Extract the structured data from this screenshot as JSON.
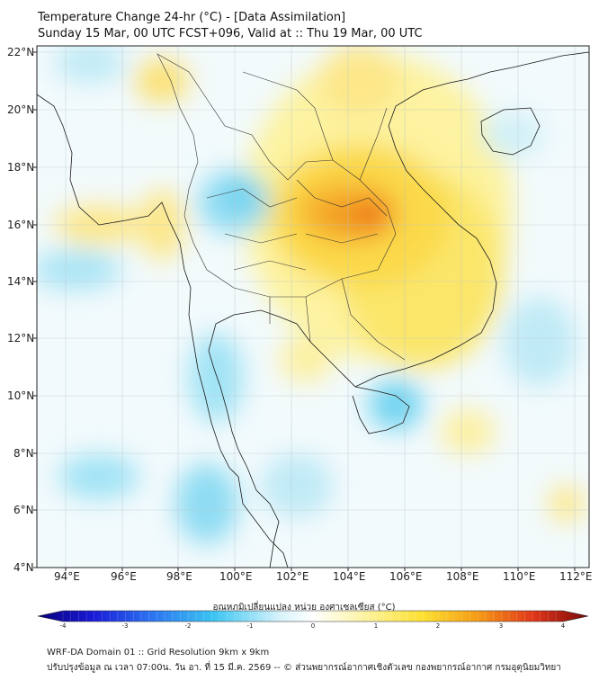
{
  "header": {
    "title_line1": "Temperature Change 24-hr (°C) - [Data Assimilation]",
    "title_line2": "Sunday 15 Mar, 00 UTC FCST+096, Valid at :: Thu 19 Mar, 00 UTC"
  },
  "map": {
    "lat_labels": [
      "22°N",
      "20°N",
      "18°N",
      "16°N",
      "14°N",
      "12°N",
      "10°N",
      "8°N",
      "6°N",
      "4°N"
    ],
    "lon_labels": [
      "94°E",
      "96°E",
      "98°E",
      "100°E",
      "102°E",
      "104°E",
      "106°E",
      "108°E",
      "110°E",
      "112°E"
    ]
  },
  "colorbar": {
    "title": "อุณหภูมิเปลี่ยนแปลง หน่วย องศาเซลเซียส (°C)",
    "tick_labels": [
      "-4",
      "-3",
      "-2",
      "-1",
      "0",
      "1",
      "2",
      "3",
      "4"
    ],
    "colors": [
      "#08007a",
      "#1a1ad6",
      "#2b6ff0",
      "#3bc5f2",
      "#d8f3fb",
      "#ffffff",
      "#fdf5b0",
      "#fde030",
      "#f59a16",
      "#e0361a",
      "#7a0a0a"
    ]
  },
  "footer": {
    "line1": "WRF-DA Domain 01 :: Grid Resolution 9km x 9km",
    "line2": "ปรับปรุงข้อมูล ณ เวลา 07:00น. วัน อา. ที่ 15 มี.ค. 2569 -- © ส่วนพยากรณ์อากาศเชิงตัวเลข กองพยากรณ์อากาศ กรมอุตุนิยมวิทยา"
  }
}
